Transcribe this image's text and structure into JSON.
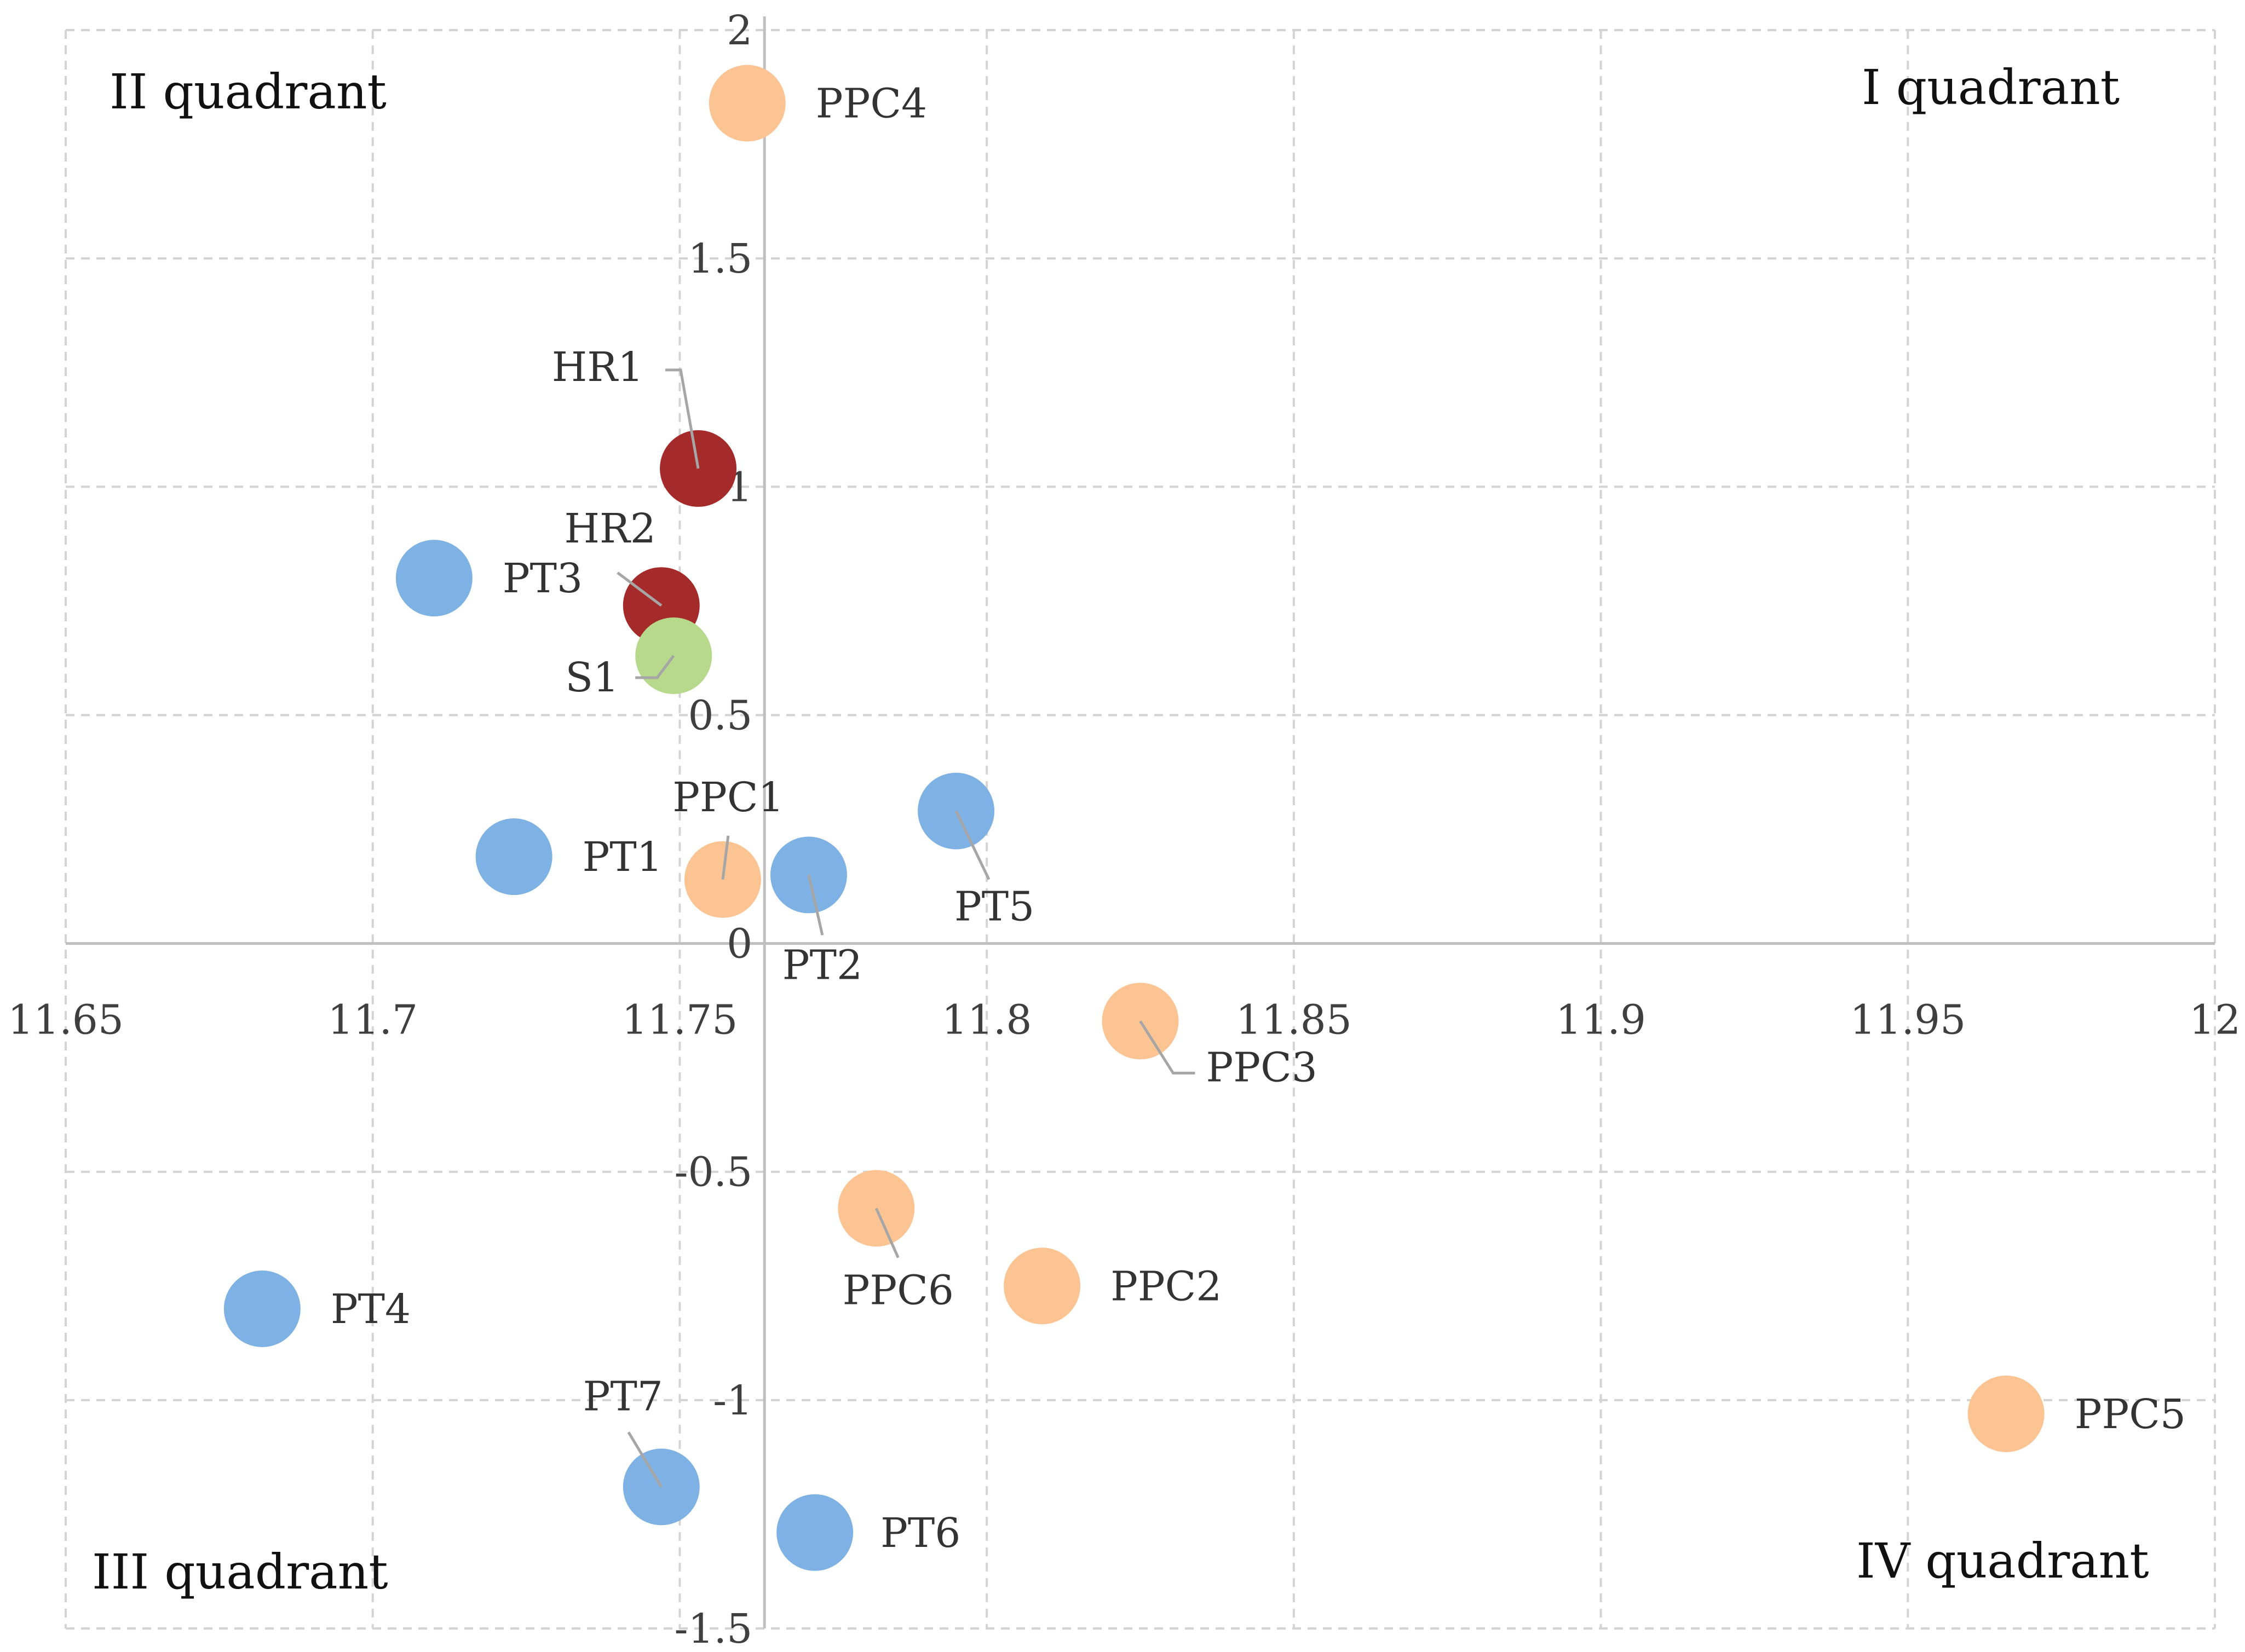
{
  "chart_data": {
    "type": "scatter",
    "title": "",
    "xlabel": "",
    "ylabel": "",
    "xlim": [
      11.65,
      12
    ],
    "ylim": [
      -1.5,
      2
    ],
    "x_ticks": [
      "11.65",
      "11.7",
      "11.75",
      "11.8",
      "11.85",
      "11.9",
      "11.95",
      "12"
    ],
    "y_ticks": [
      "2",
      "1.5",
      "1",
      "0.5",
      "0",
      "-0.5",
      "-1",
      "-1.5"
    ],
    "grid": true,
    "colors": {
      "PT": "#7eb2e4",
      "PPC": "#fdc493",
      "HR": "#a52a2a",
      "S": "#b7d98b"
    },
    "quadrants": {
      "I": "I quadrant",
      "II": "II quadrant",
      "III": "III quadrant",
      "IV": "IV quadrant"
    },
    "points": [
      {
        "label": "PPC4",
        "group": "PPC",
        "x": 11.761,
        "y": 1.84
      },
      {
        "label": "HR1",
        "group": "HR",
        "x": 11.753,
        "y": 1.04
      },
      {
        "label": "PT3",
        "group": "PT",
        "x": 11.71,
        "y": 0.8
      },
      {
        "label": "HR2",
        "group": "HR",
        "x": 11.747,
        "y": 0.74
      },
      {
        "label": "S1",
        "group": "S",
        "x": 11.749,
        "y": 0.63
      },
      {
        "label": "PT5",
        "group": "PT",
        "x": 11.795,
        "y": 0.29
      },
      {
        "label": "PT1",
        "group": "PT",
        "x": 11.723,
        "y": 0.19
      },
      {
        "label": "PPC1",
        "group": "PPC",
        "x": 11.757,
        "y": 0.14
      },
      {
        "label": "PT2",
        "group": "PT",
        "x": 11.771,
        "y": 0.15
      },
      {
        "label": "PPC3",
        "group": "PPC",
        "x": 11.825,
        "y": -0.17
      },
      {
        "label": "PPC6",
        "group": "PPC",
        "x": 11.782,
        "y": -0.58
      },
      {
        "label": "PPC2",
        "group": "PPC",
        "x": 11.809,
        "y": -0.75
      },
      {
        "label": "PT4",
        "group": "PT",
        "x": 11.682,
        "y": -0.8
      },
      {
        "label": "PPC5",
        "group": "PPC",
        "x": 11.966,
        "y": -1.03
      },
      {
        "label": "PT7",
        "group": "PT",
        "x": 11.747,
        "y": -1.19
      },
      {
        "label": "PT6",
        "group": "PT",
        "x": 11.772,
        "y": -1.29
      }
    ]
  }
}
